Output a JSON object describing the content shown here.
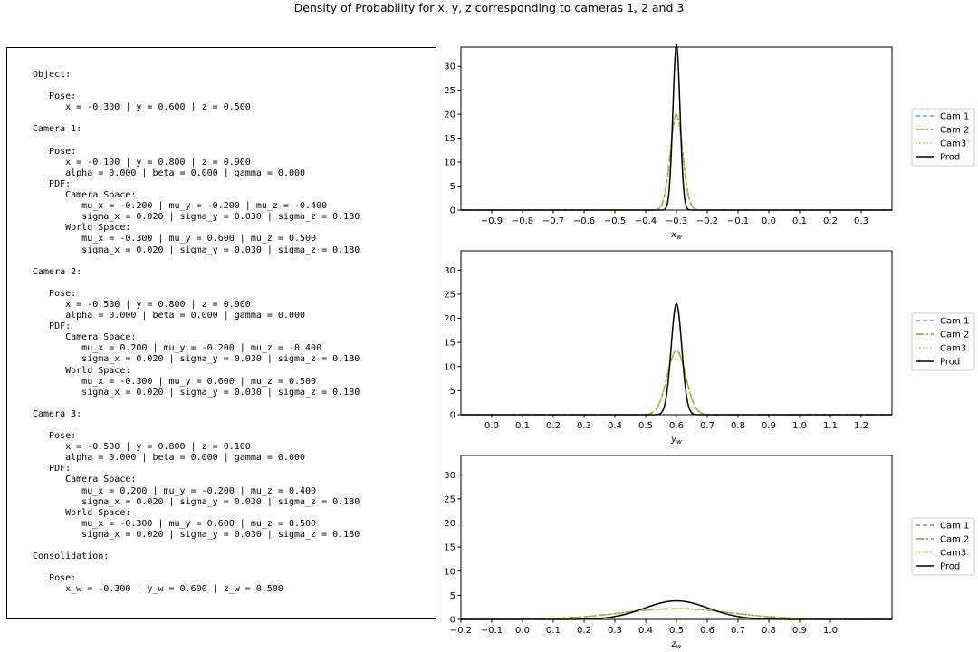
{
  "page_title": "Density of Probability for x, y, z corresponding to cameras 1, 2 and 3",
  "info_text": [
    "Object:",
    "",
    "   Pose:",
    "      x = -0.300 | y = 0.600 | z = 0.500",
    "",
    "Camera 1:",
    "",
    "   Pose:",
    "      x = -0.100 | y = 0.800 | z = 0.900",
    "      alpha = 0.000 | beta = 0.000 | gamma = 0.000",
    "   PDF:",
    "      Camera Space:",
    "         mu_x = -0.200 | mu_y = -0.200 | mu_z = -0.400",
    "         sigma_x = 0.020 | sigma_y = 0.030 | sigma_z = 0.180",
    "      World Space:",
    "         mu_x = -0.300 | mu_y = 0.600 | mu_z = 0.500",
    "         sigma_x = 0.020 | sigma_y = 0.030 | sigma_z = 0.180",
    "",
    "Camera 2:",
    "",
    "   Pose:",
    "      x = -0.500 | y = 0.800 | z = 0.900",
    "      alpha = 0.000 | beta = 0.000 | gamma = 0.000",
    "   PDF:",
    "      Camera Space:",
    "         mu_x = 0.200 | mu_y = -0.200 | mu_z = -0.400",
    "         sigma_x = 0.020 | sigma_y = 0.030 | sigma_z = 0.180",
    "      World Space:",
    "         mu_x = -0.300 | mu_y = 0.600 | mu_z = 0.500",
    "         sigma_x = 0.020 | sigma_y = 0.030 | sigma_z = 0.180",
    "",
    "Camera 3:",
    "",
    "   Pose:",
    "      x = -0.500 | y = 0.800 | z = 0.100",
    "      alpha = 0.000 | beta = 0.000 | gamma = 0.000",
    "   PDF:",
    "      Camera Space:",
    "         mu_x = 0.200 | mu_y = -0.200 | mu_z = 0.400",
    "         sigma_x = 0.020 | sigma_y = 0.030 | sigma_z = 0.180",
    "      World Space:",
    "         mu_x = -0.300 | mu_y = 0.600 | mu_z = 0.500",
    "         sigma_x = 0.020 | sigma_y = 0.030 | sigma_z = 0.180",
    "",
    "Consolidation:",
    "",
    "   Pose:",
    "      x_w = -0.300 | y_w = 0.600 | z_w = 0.500"
  ],
  "chart_data": [
    {
      "type": "line",
      "xlabel": "x_w",
      "xlim": [
        -1.0,
        0.4
      ],
      "ylim": [
        0,
        34
      ],
      "xticks": [
        "-0.9",
        "-0.8",
        "-0.7",
        "-0.6",
        "-0.5",
        "-0.4",
        "-0.3",
        "-0.2",
        "-0.1",
        "0.0",
        "0.1",
        "0.2",
        "0.3"
      ],
      "yticks": [
        "0",
        "5",
        "10",
        "15",
        "20",
        "25",
        "30"
      ],
      "legend_position": "right-outside",
      "series": [
        {
          "name": "Cam 1",
          "mu": -0.3,
          "sigma": 0.02,
          "color": "#5b9bd5",
          "dash": "5,3"
        },
        {
          "name": "Cam 2",
          "mu": -0.3,
          "sigma": 0.02,
          "color": "#70ad47",
          "dash": "9,3,2,3"
        },
        {
          "name": "Cam3",
          "mu": -0.3,
          "sigma": 0.02,
          "color": "#ffc000",
          "dash": "1.5,2.5"
        },
        {
          "name": "Prod",
          "mu": -0.3,
          "sigma": 0.01155,
          "color": "#000000",
          "dash": ""
        }
      ]
    },
    {
      "type": "line",
      "xlabel": "y_w",
      "xlim": [
        -0.1,
        1.3
      ],
      "ylim": [
        0,
        34
      ],
      "xticks": [
        "0.0",
        "0.1",
        "0.2",
        "0.3",
        "0.4",
        "0.5",
        "0.6",
        "0.7",
        "0.8",
        "0.9",
        "1.0",
        "1.1",
        "1.2"
      ],
      "yticks": [
        "0",
        "5",
        "10",
        "15",
        "20",
        "25",
        "30"
      ],
      "legend_position": "right-outside",
      "series": [
        {
          "name": "Cam 1",
          "mu": 0.6,
          "sigma": 0.03,
          "color": "#5b9bd5",
          "dash": "5,3"
        },
        {
          "name": "Cam 2",
          "mu": 0.6,
          "sigma": 0.03,
          "color": "#70ad47",
          "dash": "9,3,2,3"
        },
        {
          "name": "Cam3",
          "mu": 0.6,
          "sigma": 0.03,
          "color": "#ffc000",
          "dash": "1.5,2.5"
        },
        {
          "name": "Prod",
          "mu": 0.6,
          "sigma": 0.01732,
          "color": "#000000",
          "dash": ""
        }
      ]
    },
    {
      "type": "line",
      "xlabel": "z_w",
      "xlim": [
        -0.2,
        1.2
      ],
      "ylim": [
        0,
        34
      ],
      "xticks": [
        "-0.2",
        "-0.1",
        "0.0",
        "0.1",
        "0.2",
        "0.3",
        "0.4",
        "0.5",
        "0.6",
        "0.7",
        "0.8",
        "0.9",
        "1.0"
      ],
      "yticks": [
        "0",
        "5",
        "10",
        "15",
        "20",
        "25",
        "30"
      ],
      "legend_position": "right-outside",
      "series": [
        {
          "name": "Cam 1",
          "mu": 0.5,
          "sigma": 0.18,
          "color": "#5b9bd5",
          "dash": "5,3"
        },
        {
          "name": "Cam 2",
          "mu": 0.5,
          "sigma": 0.18,
          "color": "#70ad47",
          "dash": "9,3,2,3"
        },
        {
          "name": "Cam3",
          "mu": 0.5,
          "sigma": 0.18,
          "color": "#ffc000",
          "dash": "1.5,2.5"
        },
        {
          "name": "Prod",
          "mu": 0.5,
          "sigma": 0.1039,
          "color": "#000000",
          "dash": ""
        }
      ]
    }
  ]
}
